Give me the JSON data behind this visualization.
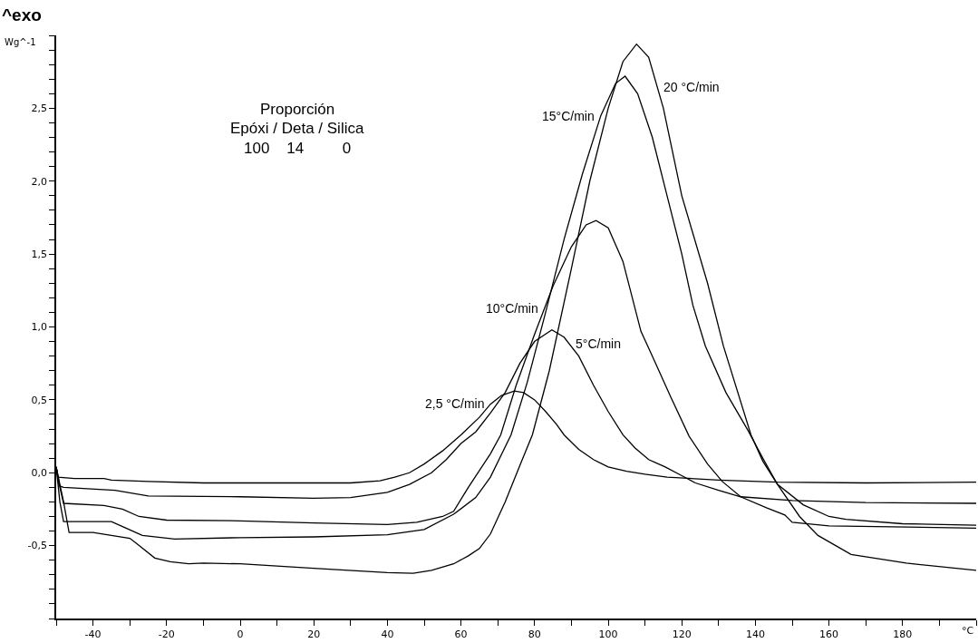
{
  "chart_data": {
    "type": "line",
    "title": "^exo",
    "ylabel": "Wg^-1",
    "xlabel": "°C",
    "annotations": [
      "Proporción",
      "Epóxi / Deta / Silica",
      "100    14         0"
    ],
    "xlim": [
      -50,
      200
    ],
    "ylim": [
      -1.0,
      3.0
    ],
    "xticks": [
      {
        "value": -50,
        "label": null
      },
      -40,
      {
        "value": -30,
        "label": null
      },
      -20,
      {
        "value": -10,
        "label": null
      },
      0,
      {
        "value": 10,
        "label": null
      },
      20,
      {
        "value": 30,
        "label": null
      },
      40,
      {
        "value": 50,
        "label": null
      },
      60,
      {
        "value": 70,
        "label": null
      },
      80,
      {
        "value": 90,
        "label": null
      },
      100,
      {
        "value": 110,
        "label": null
      },
      120,
      {
        "value": 130,
        "label": null
      },
      140,
      {
        "value": 150,
        "label": null
      },
      160,
      {
        "value": 170,
        "label": null
      },
      180,
      {
        "value": 190,
        "label": null
      },
      {
        "value": 200,
        "label": null
      }
    ],
    "yticks": [
      {
        "value": -1.0,
        "label": null
      },
      {
        "value": -0.9,
        "label": null
      },
      {
        "value": -0.8,
        "label": null
      },
      {
        "value": -0.7,
        "label": null
      },
      {
        "value": -0.6,
        "label": null
      },
      {
        "value": -0.5,
        "label": "-0,5"
      },
      {
        "value": -0.4,
        "label": null
      },
      {
        "value": -0.3,
        "label": null
      },
      {
        "value": -0.2,
        "label": null
      },
      {
        "value": -0.1,
        "label": null
      },
      {
        "value": 0.0,
        "label": "0,0"
      },
      {
        "value": 0.1,
        "label": null
      },
      {
        "value": 0.2,
        "label": null
      },
      {
        "value": 0.3,
        "label": null
      },
      {
        "value": 0.4,
        "label": null
      },
      {
        "value": 0.5,
        "label": "0,5"
      },
      {
        "value": 0.6,
        "label": null
      },
      {
        "value": 0.7,
        "label": null
      },
      {
        "value": 0.8,
        "label": null
      },
      {
        "value": 0.9,
        "label": null
      },
      {
        "value": 1.0,
        "label": "1,0"
      },
      {
        "value": 1.1,
        "label": null
      },
      {
        "value": 1.2,
        "label": null
      },
      {
        "value": 1.3,
        "label": null
      },
      {
        "value": 1.4,
        "label": null
      },
      {
        "value": 1.5,
        "label": "1,5"
      },
      {
        "value": 1.6,
        "label": null
      },
      {
        "value": 1.7,
        "label": null
      },
      {
        "value": 1.8,
        "label": null
      },
      {
        "value": 1.9,
        "label": null
      },
      {
        "value": 2.0,
        "label": "2,0"
      },
      {
        "value": 2.1,
        "label": null
      },
      {
        "value": 2.2,
        "label": null
      },
      {
        "value": 2.3,
        "label": null
      },
      {
        "value": 2.4,
        "label": null
      },
      {
        "value": 2.5,
        "label": "2,5"
      },
      {
        "value": 2.6,
        "label": null
      },
      {
        "value": 2.7,
        "label": null
      },
      {
        "value": 2.8,
        "label": null
      },
      {
        "value": 2.9,
        "label": null
      },
      {
        "value": 3.0,
        "label": null
      }
    ],
    "series": [
      {
        "name": "20 °C/min",
        "color": "#000000",
        "x": [
          -50,
          -48,
          -46.5,
          -40,
          -35,
          -30,
          -28.4,
          -23.2,
          -19,
          -14,
          -10,
          0,
          20,
          40,
          47,
          52,
          58,
          62,
          65,
          68,
          72,
          76,
          79.4,
          84,
          90,
          95,
          100,
          104,
          107.7,
          111,
          115,
          120,
          127,
          131.3,
          138.8,
          142,
          146,
          152,
          157,
          166,
          181,
          200
        ],
        "values": [
          0.04,
          -0.2,
          -0.41,
          -0.41,
          -0.43,
          -0.45,
          -0.48,
          -0.585,
          -0.61,
          -0.625,
          -0.62,
          -0.625,
          -0.655,
          -0.685,
          -0.69,
          -0.67,
          -0.625,
          -0.57,
          -0.52,
          -0.42,
          -0.2,
          0.05,
          0.26,
          0.7,
          1.4,
          2.0,
          2.5,
          2.82,
          2.94,
          2.85,
          2.5,
          1.9,
          1.3,
          0.87,
          0.26,
          0.08,
          -0.08,
          -0.3,
          -0.43,
          -0.56,
          -0.62,
          -0.67
        ]
      },
      {
        "name": "15°C/min",
        "color": "#000000",
        "x": [
          -50,
          -49,
          -48,
          -35,
          -31,
          -26.6,
          -17.8,
          0,
          20,
          40,
          50,
          58,
          64,
          68,
          73.6,
          78,
          83,
          88,
          93,
          98,
          102,
          104.6,
          108,
          112,
          116,
          120,
          123,
          126.4,
          132,
          138,
          142,
          146,
          153,
          160,
          164.6,
          180,
          200
        ],
        "values": [
          0.04,
          -0.2,
          -0.335,
          -0.335,
          -0.38,
          -0.43,
          -0.455,
          -0.445,
          -0.44,
          -0.425,
          -0.39,
          -0.285,
          -0.17,
          -0.03,
          0.26,
          0.62,
          1.1,
          1.6,
          2.05,
          2.45,
          2.67,
          2.72,
          2.6,
          2.3,
          1.9,
          1.5,
          1.15,
          0.87,
          0.55,
          0.29,
          0.1,
          -0.08,
          -0.22,
          -0.3,
          -0.32,
          -0.35,
          -0.36
        ]
      },
      {
        "name": "10°C/min",
        "color": "#000000",
        "x": [
          -50,
          -49,
          -48,
          -37,
          -32,
          -27.5,
          -20,
          0,
          20,
          40,
          48,
          55,
          58,
          62,
          68,
          70.8,
          75,
          80,
          85,
          90,
          94,
          96.7,
          100,
          104,
          108.9,
          112,
          117,
          122,
          127,
          131,
          136,
          143,
          148,
          150,
          160,
          200
        ],
        "values": [
          0.04,
          -0.1,
          -0.21,
          -0.225,
          -0.25,
          -0.3,
          -0.325,
          -0.33,
          -0.345,
          -0.355,
          -0.34,
          -0.3,
          -0.265,
          -0.1,
          0.13,
          0.26,
          0.6,
          0.95,
          1.28,
          1.55,
          1.7,
          1.73,
          1.68,
          1.45,
          0.97,
          0.8,
          0.52,
          0.25,
          0.06,
          -0.06,
          -0.165,
          -0.24,
          -0.29,
          -0.34,
          -0.365,
          -0.38
        ]
      },
      {
        "name": "5°C/min",
        "color": "#000000",
        "x": [
          -50,
          -49.2,
          -48,
          -34,
          -25,
          0,
          20,
          30,
          40,
          46,
          52,
          56,
          60,
          64,
          68,
          72,
          76,
          80,
          84.7,
          88,
          92,
          96,
          100,
          104,
          107.3,
          111,
          115.5,
          120,
          123.7,
          130,
          136,
          150,
          170,
          200
        ],
        "values": [
          0.04,
          -0.09,
          -0.1,
          -0.12,
          -0.16,
          -0.165,
          -0.175,
          -0.17,
          -0.135,
          -0.08,
          0.0,
          0.09,
          0.2,
          0.28,
          0.41,
          0.55,
          0.75,
          0.9,
          0.98,
          0.93,
          0.8,
          0.6,
          0.42,
          0.26,
          0.17,
          0.09,
          0.04,
          -0.02,
          -0.07,
          -0.12,
          -0.165,
          -0.19,
          -0.205,
          -0.21
        ]
      },
      {
        "name": "2,5 °C/min",
        "color": "#000000",
        "x": [
          -50,
          -49.5,
          -45,
          -37,
          -35,
          -25,
          -10,
          10,
          30,
          38,
          42,
          46,
          50,
          55,
          60,
          65,
          68,
          71,
          74.5,
          77,
          80,
          83,
          86,
          88,
          92,
          96,
          100,
          105,
          110,
          116,
          130,
          146,
          170,
          200
        ],
        "values": [
          0.04,
          -0.03,
          -0.04,
          -0.04,
          -0.05,
          -0.06,
          -0.07,
          -0.07,
          -0.07,
          -0.055,
          -0.03,
          0.0,
          0.06,
          0.15,
          0.26,
          0.38,
          0.47,
          0.53,
          0.56,
          0.55,
          0.5,
          0.42,
          0.33,
          0.26,
          0.16,
          0.09,
          0.04,
          0.01,
          -0.01,
          -0.03,
          -0.05,
          -0.065,
          -0.07,
          -0.065
        ]
      }
    ]
  }
}
